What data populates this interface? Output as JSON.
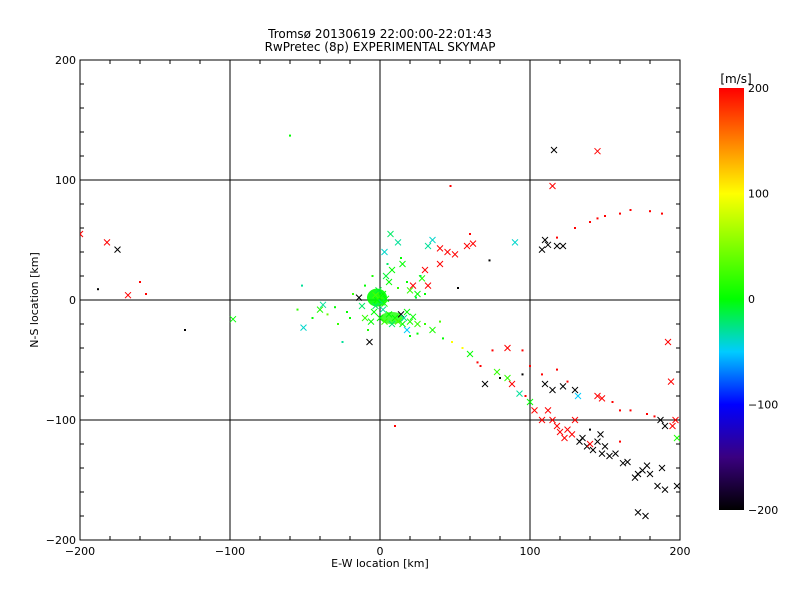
{
  "chart_data": {
    "type": "scatter",
    "title": "Tromsø 20130619 22:00:00-22:01:43",
    "subtitle": "RwPretec (8p) EXPERIMENTAL SKYMAP",
    "xlabel": "E-W location [km]",
    "ylabel": "N-S location [km]",
    "xlim": [
      -200,
      200
    ],
    "ylim": [
      -200,
      200
    ],
    "xticks": [
      -200,
      -100,
      0,
      100,
      200
    ],
    "yticks": [
      -200,
      -100,
      0,
      100,
      200
    ],
    "xtick_labels": [
      "−200",
      "−100",
      "0",
      "100",
      "200"
    ],
    "ytick_labels": [
      "−200",
      "−100",
      "0",
      "100",
      "200"
    ],
    "grid": true,
    "colorbar": {
      "label": "[m/s]",
      "min": -200,
      "max": 200,
      "ticks": [
        200,
        100,
        0,
        -100,
        -200
      ],
      "tick_labels": [
        "200",
        "100",
        "0",
        "−100",
        "−200"
      ],
      "stops": [
        {
          "v": -200,
          "color": "#000000"
        },
        {
          "v": -150,
          "color": "#3a0080"
        },
        {
          "v": -100,
          "color": "#0000ff"
        },
        {
          "v": -50,
          "color": "#00ccff"
        },
        {
          "v": 0,
          "color": "#00ff00"
        },
        {
          "v": 100,
          "color": "#ffff00"
        },
        {
          "v": 150,
          "color": "#ff8000"
        },
        {
          "v": 200,
          "color": "#ff0000"
        }
      ]
    },
    "points": [
      {
        "x": -200,
        "y": 55,
        "v": 200,
        "m": "x"
      },
      {
        "x": -182,
        "y": 48,
        "v": 200,
        "m": "x"
      },
      {
        "x": -175,
        "y": 42,
        "v": -200,
        "m": "x"
      },
      {
        "x": -168,
        "y": 4,
        "v": 200,
        "m": "x"
      },
      {
        "x": -160,
        "y": 15,
        "v": 200,
        "m": "d"
      },
      {
        "x": -156,
        "y": 5,
        "v": 200,
        "m": "d"
      },
      {
        "x": -188,
        "y": 9,
        "v": -200,
        "m": "d"
      },
      {
        "x": -130,
        "y": -25,
        "v": -200,
        "m": "d"
      },
      {
        "x": -98,
        "y": -16,
        "v": 0,
        "m": "x"
      },
      {
        "x": -60,
        "y": 137,
        "v": 0,
        "m": "d"
      },
      {
        "x": -52,
        "y": 12,
        "v": -30,
        "m": "d"
      },
      {
        "x": -51,
        "y": -23,
        "v": -40,
        "m": "x"
      },
      {
        "x": -40,
        "y": -8,
        "v": 10,
        "m": "x"
      },
      {
        "x": -38,
        "y": -4,
        "v": -30,
        "m": "x"
      },
      {
        "x": -35,
        "y": -12,
        "v": 40,
        "m": "d"
      },
      {
        "x": -30,
        "y": -6,
        "v": 0,
        "m": "d"
      },
      {
        "x": -25,
        "y": -35,
        "v": -30,
        "m": "d"
      },
      {
        "x": -20,
        "y": -15,
        "v": 0,
        "m": "d"
      },
      {
        "x": -14,
        "y": 2,
        "v": -200,
        "m": "x"
      },
      {
        "x": -12,
        "y": -5,
        "v": -20,
        "m": "x"
      },
      {
        "x": -10,
        "y": -15,
        "v": 20,
        "m": "x"
      },
      {
        "x": -7,
        "y": -35,
        "v": -200,
        "m": "x"
      },
      {
        "x": -6,
        "y": -18,
        "v": 0,
        "m": "x"
      },
      {
        "x": -4,
        "y": -10,
        "v": 0,
        "m": "x"
      },
      {
        "x": -3,
        "y": -5,
        "v": -20,
        "m": "x"
      },
      {
        "x": -2,
        "y": 0,
        "v": 0,
        "m": "x"
      },
      {
        "x": 0,
        "y": 3,
        "v": 20,
        "m": "x"
      },
      {
        "x": 1,
        "y": -2,
        "v": -20,
        "m": "x"
      },
      {
        "x": 2,
        "y": 5,
        "v": 0,
        "m": "x"
      },
      {
        "x": 3,
        "y": -3,
        "v": 10,
        "m": "x"
      },
      {
        "x": -1,
        "y": 8,
        "v": -10,
        "m": "x"
      },
      {
        "x": 4,
        "y": 1,
        "v": 0,
        "m": "x"
      },
      {
        "x": -3,
        "y": 4,
        "v": 30,
        "m": "x"
      },
      {
        "x": 2,
        "y": -8,
        "v": -30,
        "m": "x"
      },
      {
        "x": 0,
        "y": -15,
        "v": 0,
        "m": "x"
      },
      {
        "x": 3,
        "y": -18,
        "v": 20,
        "m": "x"
      },
      {
        "x": 6,
        "y": -12,
        "v": 0,
        "m": "x"
      },
      {
        "x": 8,
        "y": -20,
        "v": -20,
        "m": "x"
      },
      {
        "x": 10,
        "y": -15,
        "v": 0,
        "m": "x"
      },
      {
        "x": 12,
        "y": -18,
        "v": 30,
        "m": "x"
      },
      {
        "x": 14,
        "y": -12,
        "v": -200,
        "m": "x"
      },
      {
        "x": 15,
        "y": -20,
        "v": 0,
        "m": "x"
      },
      {
        "x": 16,
        "y": -15,
        "v": -30,
        "m": "x"
      },
      {
        "x": 18,
        "y": -10,
        "v": 0,
        "m": "x"
      },
      {
        "x": 20,
        "y": -18,
        "v": 10,
        "m": "x"
      },
      {
        "x": 18,
        "y": -25,
        "v": -50,
        "m": "x"
      },
      {
        "x": 22,
        "y": -14,
        "v": 0,
        "m": "x"
      },
      {
        "x": 25,
        "y": -20,
        "v": 20,
        "m": "x"
      },
      {
        "x": 6,
        "y": 15,
        "v": 0,
        "m": "x"
      },
      {
        "x": 4,
        "y": 20,
        "v": -10,
        "m": "x"
      },
      {
        "x": 8,
        "y": 25,
        "v": 0,
        "m": "x"
      },
      {
        "x": 3,
        "y": 40,
        "v": -40,
        "m": "x"
      },
      {
        "x": 7,
        "y": 55,
        "v": -20,
        "m": "x"
      },
      {
        "x": 12,
        "y": 48,
        "v": -30,
        "m": "x"
      },
      {
        "x": 15,
        "y": 30,
        "v": 0,
        "m": "x"
      },
      {
        "x": 20,
        "y": 8,
        "v": 20,
        "m": "x"
      },
      {
        "x": 22,
        "y": 12,
        "v": 200,
        "m": "x"
      },
      {
        "x": 25,
        "y": 5,
        "v": 0,
        "m": "x"
      },
      {
        "x": 28,
        "y": 18,
        "v": 10,
        "m": "x"
      },
      {
        "x": 32,
        "y": 45,
        "v": -30,
        "m": "x"
      },
      {
        "x": 35,
        "y": 50,
        "v": -40,
        "m": "x"
      },
      {
        "x": 40,
        "y": 43,
        "v": 200,
        "m": "x"
      },
      {
        "x": 45,
        "y": 40,
        "v": 200,
        "m": "x"
      },
      {
        "x": 50,
        "y": 38,
        "v": 200,
        "m": "x"
      },
      {
        "x": 58,
        "y": 45,
        "v": 200,
        "m": "x"
      },
      {
        "x": 62,
        "y": 47,
        "v": 200,
        "m": "x"
      },
      {
        "x": 30,
        "y": 25,
        "v": 200,
        "m": "x"
      },
      {
        "x": 40,
        "y": 30,
        "v": 200,
        "m": "x"
      },
      {
        "x": 47,
        "y": 95,
        "v": 200,
        "m": "d"
      },
      {
        "x": 60,
        "y": 55,
        "v": 200,
        "m": "d"
      },
      {
        "x": 90,
        "y": 48,
        "v": -40,
        "m": "x"
      },
      {
        "x": 73,
        "y": 33,
        "v": -200,
        "m": "d"
      },
      {
        "x": 52,
        "y": 10,
        "v": -200,
        "m": "d"
      },
      {
        "x": 32,
        "y": 12,
        "v": 200,
        "m": "x"
      },
      {
        "x": 110,
        "y": 50,
        "v": -200,
        "m": "x"
      },
      {
        "x": 112,
        "y": 46,
        "v": -200,
        "m": "x"
      },
      {
        "x": 108,
        "y": 42,
        "v": -200,
        "m": "x"
      },
      {
        "x": 118,
        "y": 45,
        "v": -200,
        "m": "x"
      },
      {
        "x": 122,
        "y": 45,
        "v": -200,
        "m": "x"
      },
      {
        "x": 115,
        "y": 95,
        "v": 200,
        "m": "x"
      },
      {
        "x": 116,
        "y": 125,
        "v": -200,
        "m": "x"
      },
      {
        "x": 145,
        "y": 124,
        "v": 200,
        "m": "x"
      },
      {
        "x": 130,
        "y": 60,
        "v": 200,
        "m": "d"
      },
      {
        "x": 140,
        "y": 65,
        "v": 200,
        "m": "d"
      },
      {
        "x": 145,
        "y": 68,
        "v": 200,
        "m": "d"
      },
      {
        "x": 150,
        "y": 70,
        "v": 200,
        "m": "d"
      },
      {
        "x": 160,
        "y": 72,
        "v": 200,
        "m": "d"
      },
      {
        "x": 167,
        "y": 75,
        "v": 200,
        "m": "d"
      },
      {
        "x": 180,
        "y": 74,
        "v": 200,
        "m": "d"
      },
      {
        "x": 188,
        "y": 72,
        "v": 200,
        "m": "d"
      },
      {
        "x": 118,
        "y": 52,
        "v": 200,
        "m": "d"
      },
      {
        "x": 35,
        "y": -25,
        "v": 10,
        "m": "x"
      },
      {
        "x": 42,
        "y": -32,
        "v": 0,
        "m": "d"
      },
      {
        "x": 48,
        "y": -35,
        "v": 100,
        "m": "d"
      },
      {
        "x": 55,
        "y": -40,
        "v": 100,
        "m": "d"
      },
      {
        "x": 60,
        "y": -45,
        "v": 0,
        "m": "x"
      },
      {
        "x": 67,
        "y": -55,
        "v": 200,
        "m": "d"
      },
      {
        "x": 70,
        "y": -70,
        "v": -200,
        "m": "x"
      },
      {
        "x": 78,
        "y": -60,
        "v": 20,
        "m": "x"
      },
      {
        "x": 80,
        "y": -65,
        "v": -200,
        "m": "d"
      },
      {
        "x": 85,
        "y": -65,
        "v": 20,
        "m": "x"
      },
      {
        "x": 88,
        "y": -70,
        "v": 200,
        "m": "x"
      },
      {
        "x": 93,
        "y": -78,
        "v": -30,
        "m": "x"
      },
      {
        "x": 97,
        "y": -80,
        "v": 200,
        "m": "d"
      },
      {
        "x": 100,
        "y": -85,
        "v": 0,
        "m": "x"
      },
      {
        "x": 103,
        "y": -92,
        "v": 200,
        "m": "x"
      },
      {
        "x": 108,
        "y": -100,
        "v": 200,
        "m": "x"
      },
      {
        "x": 112,
        "y": -92,
        "v": 200,
        "m": "x"
      },
      {
        "x": 115,
        "y": -100,
        "v": 200,
        "m": "x"
      },
      {
        "x": 118,
        "y": -105,
        "v": 200,
        "m": "x"
      },
      {
        "x": 120,
        "y": -110,
        "v": 200,
        "m": "x"
      },
      {
        "x": 123,
        "y": -115,
        "v": 200,
        "m": "x"
      },
      {
        "x": 125,
        "y": -108,
        "v": 200,
        "m": "x"
      },
      {
        "x": 128,
        "y": -112,
        "v": 200,
        "m": "x"
      },
      {
        "x": 130,
        "y": -100,
        "v": 200,
        "m": "x"
      },
      {
        "x": 133,
        "y": -118,
        "v": -200,
        "m": "x"
      },
      {
        "x": 135,
        "y": -115,
        "v": -200,
        "m": "x"
      },
      {
        "x": 138,
        "y": -122,
        "v": -200,
        "m": "x"
      },
      {
        "x": 140,
        "y": -120,
        "v": 200,
        "m": "x"
      },
      {
        "x": 142,
        "y": -125,
        "v": -200,
        "m": "x"
      },
      {
        "x": 145,
        "y": -118,
        "v": -200,
        "m": "x"
      },
      {
        "x": 148,
        "y": -128,
        "v": -200,
        "m": "x"
      },
      {
        "x": 150,
        "y": -122,
        "v": -200,
        "m": "x"
      },
      {
        "x": 153,
        "y": -130,
        "v": -200,
        "m": "x"
      },
      {
        "x": 157,
        "y": -128,
        "v": -200,
        "m": "x"
      },
      {
        "x": 162,
        "y": -136,
        "v": -200,
        "m": "x"
      },
      {
        "x": 165,
        "y": -135,
        "v": -200,
        "m": "x"
      },
      {
        "x": 170,
        "y": -148,
        "v": -200,
        "m": "x"
      },
      {
        "x": 172,
        "y": -145,
        "v": -200,
        "m": "x"
      },
      {
        "x": 175,
        "y": -142,
        "v": -200,
        "m": "x"
      },
      {
        "x": 178,
        "y": -138,
        "v": -200,
        "m": "x"
      },
      {
        "x": 180,
        "y": -145,
        "v": -200,
        "m": "x"
      },
      {
        "x": 185,
        "y": -155,
        "v": -200,
        "m": "x"
      },
      {
        "x": 188,
        "y": -140,
        "v": -200,
        "m": "x"
      },
      {
        "x": 190,
        "y": -158,
        "v": -200,
        "m": "x"
      },
      {
        "x": 198,
        "y": -155,
        "v": -200,
        "m": "x"
      },
      {
        "x": 172,
        "y": -177,
        "v": -200,
        "m": "x"
      },
      {
        "x": 177,
        "y": -180,
        "v": -200,
        "m": "x"
      },
      {
        "x": 187,
        "y": -100,
        "v": -200,
        "m": "x"
      },
      {
        "x": 190,
        "y": -105,
        "v": -200,
        "m": "x"
      },
      {
        "x": 197,
        "y": -100,
        "v": 200,
        "m": "x"
      },
      {
        "x": 195,
        "y": -105,
        "v": 200,
        "m": "x"
      },
      {
        "x": 192,
        "y": -35,
        "v": 200,
        "m": "x"
      },
      {
        "x": 194,
        "y": -68,
        "v": 200,
        "m": "x"
      },
      {
        "x": 198,
        "y": -115,
        "v": 10,
        "m": "x"
      },
      {
        "x": 115,
        "y": -75,
        "v": -200,
        "m": "x"
      },
      {
        "x": 122,
        "y": -72,
        "v": -200,
        "m": "x"
      },
      {
        "x": 130,
        "y": -75,
        "v": -200,
        "m": "x"
      },
      {
        "x": 132,
        "y": -80,
        "v": -50,
        "m": "x"
      },
      {
        "x": 145,
        "y": -80,
        "v": 200,
        "m": "x"
      },
      {
        "x": 148,
        "y": -82,
        "v": 200,
        "m": "x"
      },
      {
        "x": 155,
        "y": -85,
        "v": 200,
        "m": "d"
      },
      {
        "x": 160,
        "y": -92,
        "v": 200,
        "m": "d"
      },
      {
        "x": 167,
        "y": -92,
        "v": 200,
        "m": "d"
      },
      {
        "x": 178,
        "y": -95,
        "v": 200,
        "m": "d"
      },
      {
        "x": 183,
        "y": -97,
        "v": 200,
        "m": "d"
      },
      {
        "x": 125,
        "y": -68,
        "v": 200,
        "m": "d"
      },
      {
        "x": 118,
        "y": -58,
        "v": 200,
        "m": "d"
      },
      {
        "x": 100,
        "y": -55,
        "v": 200,
        "m": "d"
      },
      {
        "x": 108,
        "y": -62,
        "v": 200,
        "m": "d"
      },
      {
        "x": 110,
        "y": -70,
        "v": -200,
        "m": "x"
      },
      {
        "x": 95,
        "y": -42,
        "v": 200,
        "m": "d"
      },
      {
        "x": 85,
        "y": -40,
        "v": 200,
        "m": "x"
      },
      {
        "x": 75,
        "y": -42,
        "v": 200,
        "m": "d"
      },
      {
        "x": 65,
        "y": -52,
        "v": 200,
        "m": "d"
      },
      {
        "x": 95,
        "y": -62,
        "v": -200,
        "m": "d"
      },
      {
        "x": 140,
        "y": -108,
        "v": -200,
        "m": "d"
      },
      {
        "x": 160,
        "y": -118,
        "v": 200,
        "m": "d"
      },
      {
        "x": 147,
        "y": -112,
        "v": -200,
        "m": "x"
      },
      {
        "x": 30,
        "y": -20,
        "v": 20,
        "m": "d"
      },
      {
        "x": 20,
        "y": -30,
        "v": 0,
        "m": "d"
      },
      {
        "x": 10,
        "y": -105,
        "v": 200,
        "m": "d"
      },
      {
        "x": 40,
        "y": -18,
        "v": 30,
        "m": "d"
      },
      {
        "x": 5,
        "y": 30,
        "v": -20,
        "m": "d"
      },
      {
        "x": 14,
        "y": 35,
        "v": 0,
        "m": "d"
      },
      {
        "x": -5,
        "y": 20,
        "v": 10,
        "m": "d"
      },
      {
        "x": -10,
        "y": 12,
        "v": 0,
        "m": "d"
      },
      {
        "x": -18,
        "y": 5,
        "v": 20,
        "m": "d"
      },
      {
        "x": -22,
        "y": -10,
        "v": 0,
        "m": "d"
      },
      {
        "x": 27,
        "y": 20,
        "v": -10,
        "m": "d"
      },
      {
        "x": 18,
        "y": 15,
        "v": 0,
        "m": "d"
      },
      {
        "x": 12,
        "y": 10,
        "v": 20,
        "m": "d"
      },
      {
        "x": 24,
        "y": 2,
        "v": -10,
        "m": "d"
      },
      {
        "x": 30,
        "y": 5,
        "v": 0,
        "m": "d"
      },
      {
        "x": -8,
        "y": -25,
        "v": 10,
        "m": "d"
      },
      {
        "x": 25,
        "y": -28,
        "v": 0,
        "m": "d"
      },
      {
        "x": -28,
        "y": -20,
        "v": 20,
        "m": "d"
      },
      {
        "x": -45,
        "y": -15,
        "v": 0,
        "m": "d"
      },
      {
        "x": -55,
        "y": -8,
        "v": 20,
        "m": "d"
      }
    ]
  }
}
